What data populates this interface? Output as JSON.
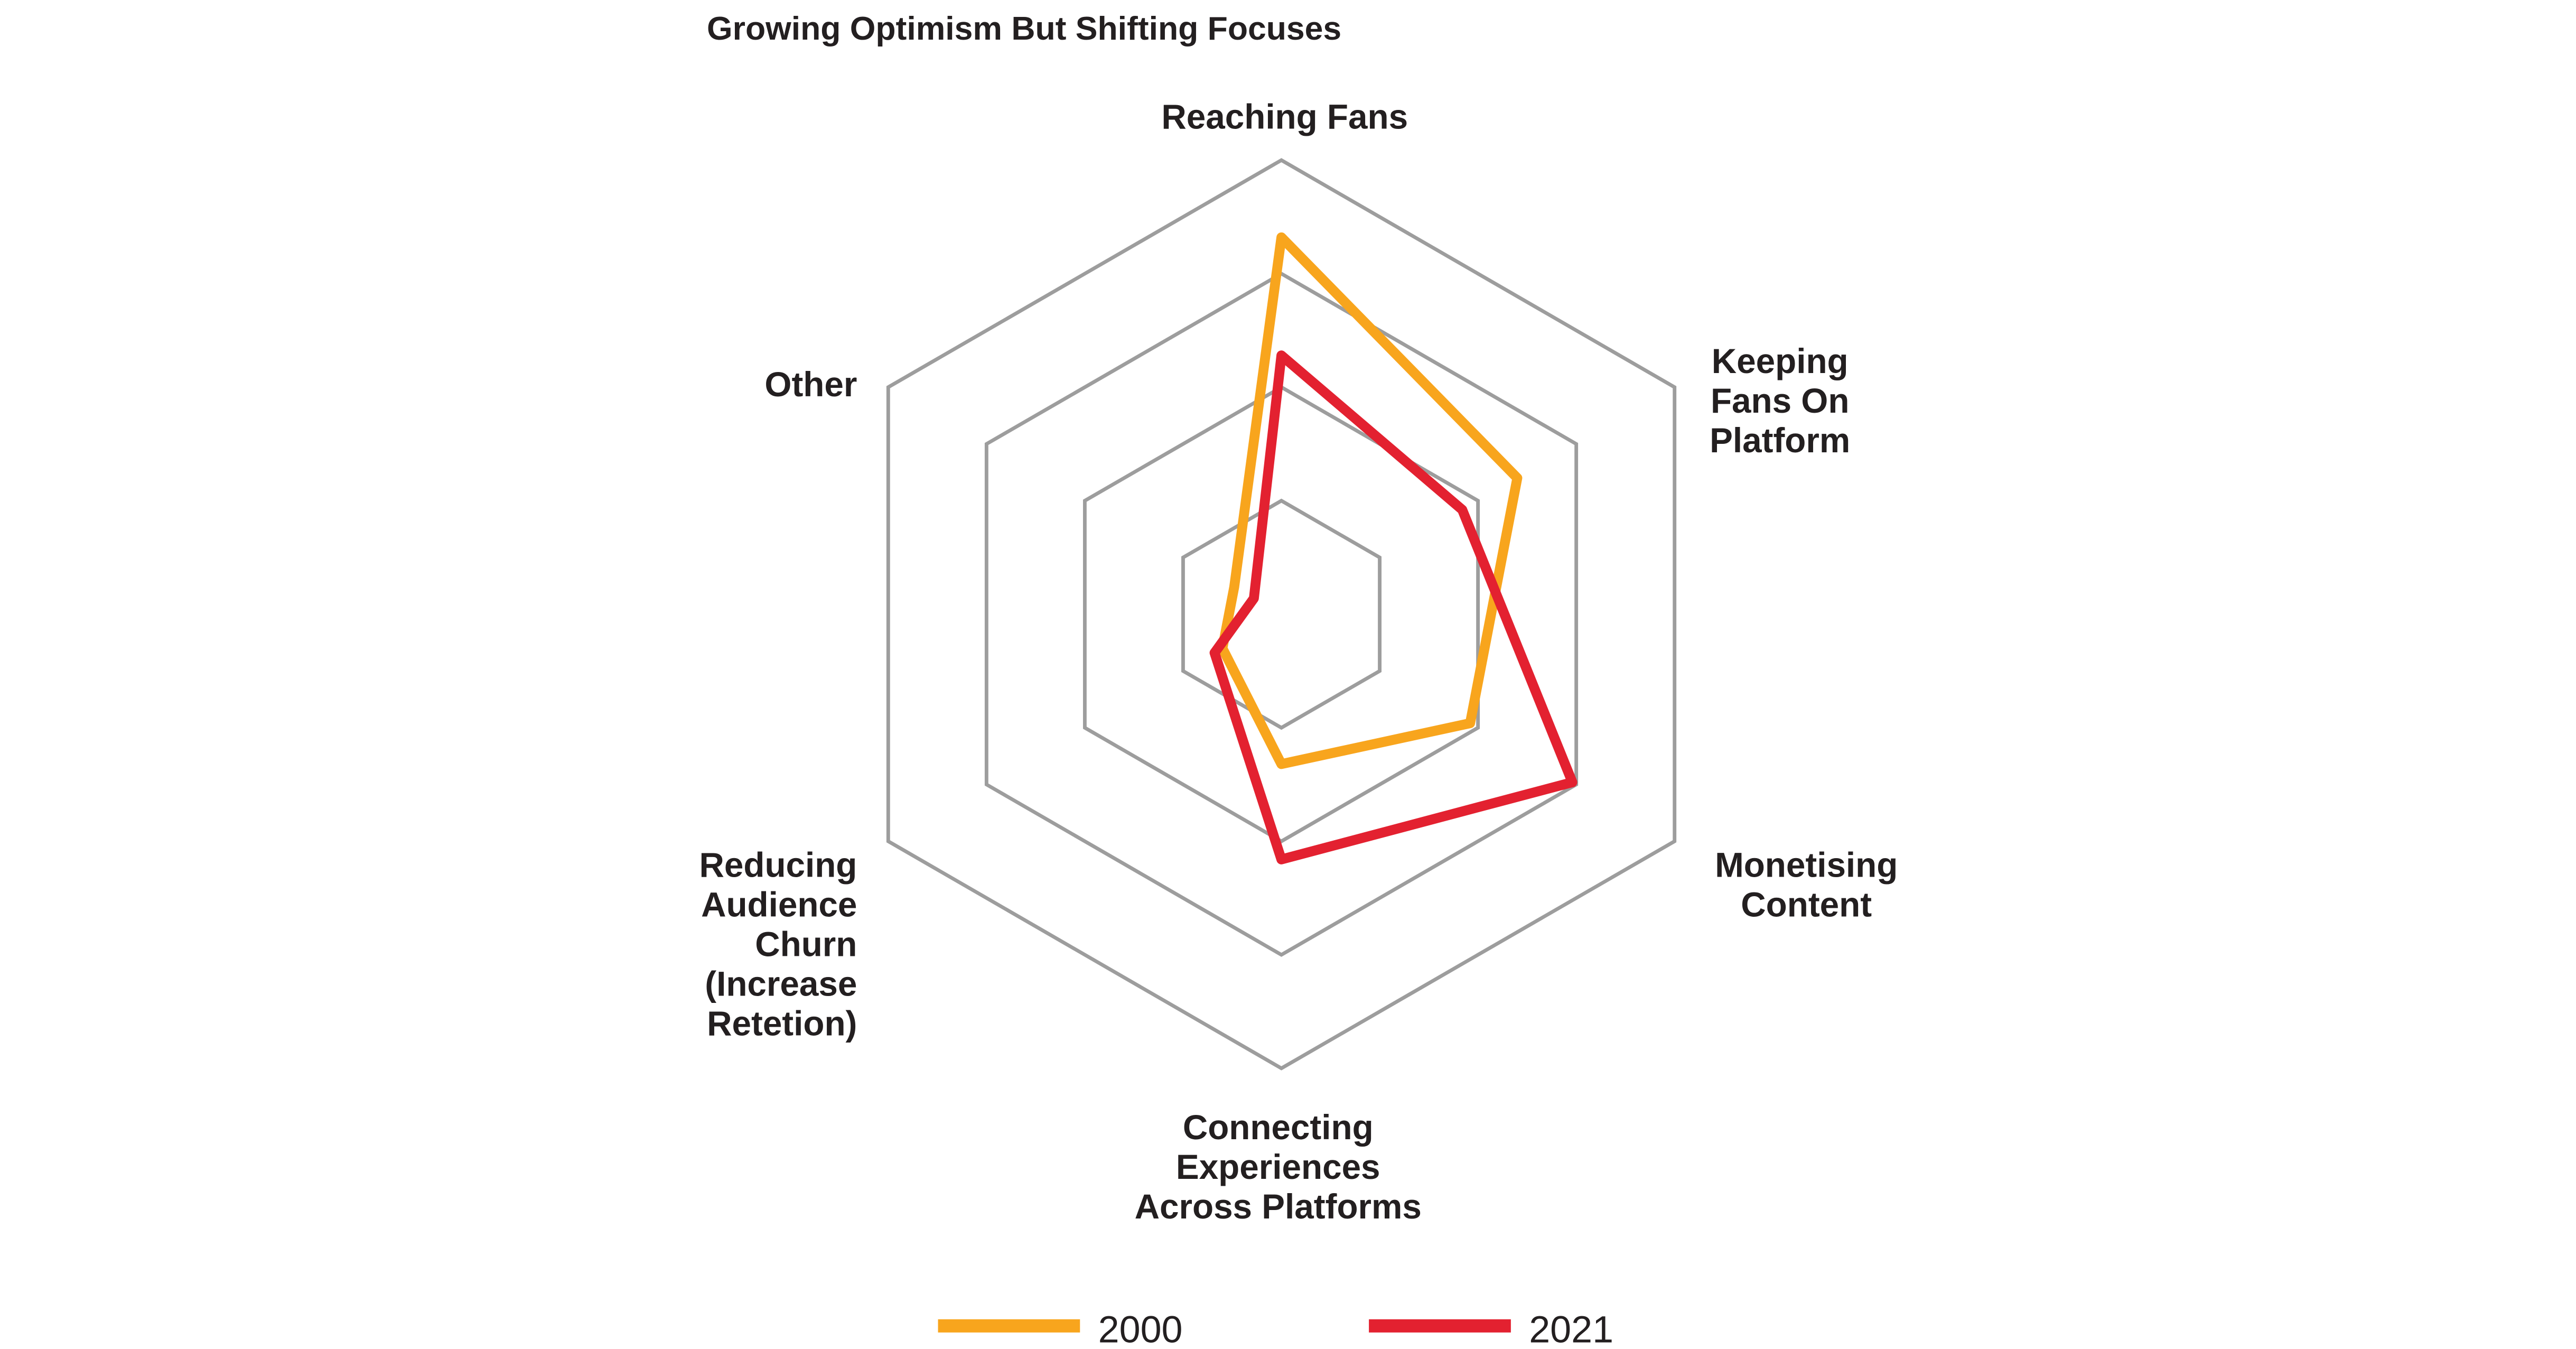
{
  "chart_data": {
    "type": "radar",
    "title": "Growing Optimism But Shifting Focuses",
    "axes": [
      [
        "Reaching Fans"
      ],
      [
        "Keeping",
        "Fans On",
        "Platform"
      ],
      [
        "Monetising",
        "Content"
      ],
      [
        "Connecting",
        "Experiences",
        "Across Platforms"
      ],
      [
        "Reducing",
        "Audience",
        "Churn",
        "(Increase",
        "Retetion)"
      ],
      [
        "Other"
      ]
    ],
    "range": [
      0,
      100
    ],
    "rings": 4,
    "grid": true,
    "legend_position": "bottom",
    "series": [
      {
        "name": "2000",
        "color": "#f8a51d",
        "values": [
          83,
          60,
          48,
          33,
          15,
          12
        ]
      },
      {
        "name": "2021",
        "color": "#e32130",
        "values": [
          57,
          46,
          74,
          54,
          17,
          7
        ]
      }
    ],
    "grid_color": "#9d9d9d"
  }
}
